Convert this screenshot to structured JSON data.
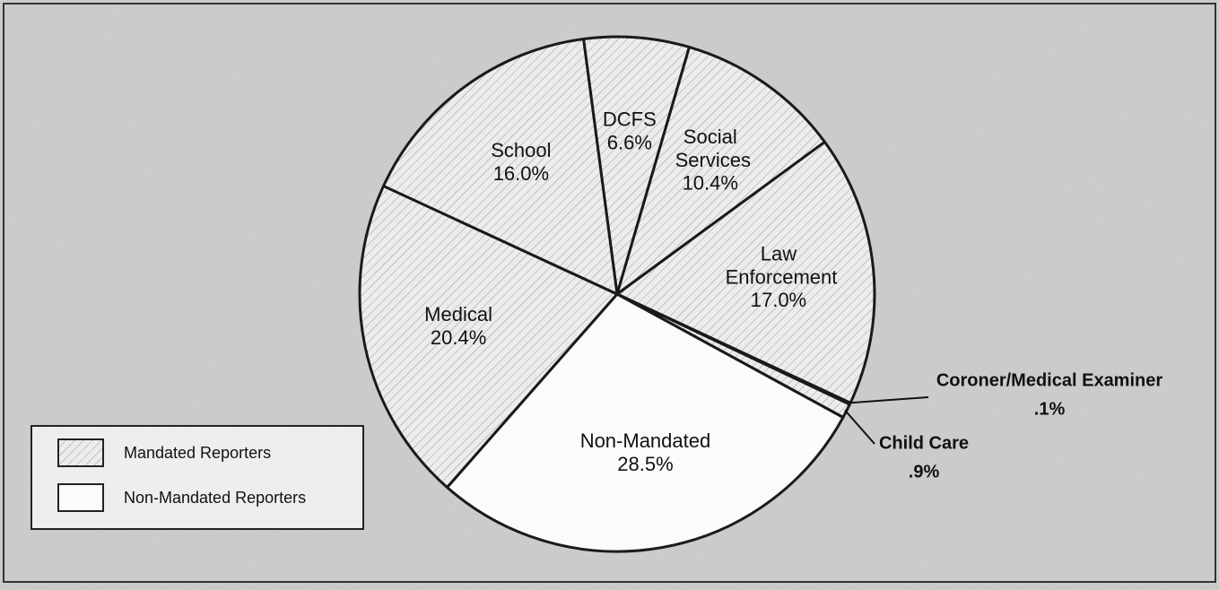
{
  "chart_data": {
    "type": "pie",
    "categories": [
      "DCFS",
      "Social Services",
      "Law Enforcement",
      "Coroner/Medical Examiner",
      "Child Care",
      "Non-Mandated",
      "Medical",
      "School"
    ],
    "values": [
      6.6,
      10.4,
      17.0,
      0.1,
      0.9,
      28.5,
      20.4,
      16.0
    ],
    "value_labels": [
      "6.6%",
      "10.4%",
      "17.0%",
      ".1%",
      ".9%",
      "28.5%",
      "20.4%",
      "16.0%"
    ],
    "groups": [
      0,
      0,
      0,
      0,
      0,
      1,
      0,
      0
    ],
    "legend": [
      {
        "name": "Mandated Reporters",
        "pattern": "hatch"
      },
      {
        "name": "Non-Mandated Reporters",
        "pattern": "none"
      }
    ]
  }
}
